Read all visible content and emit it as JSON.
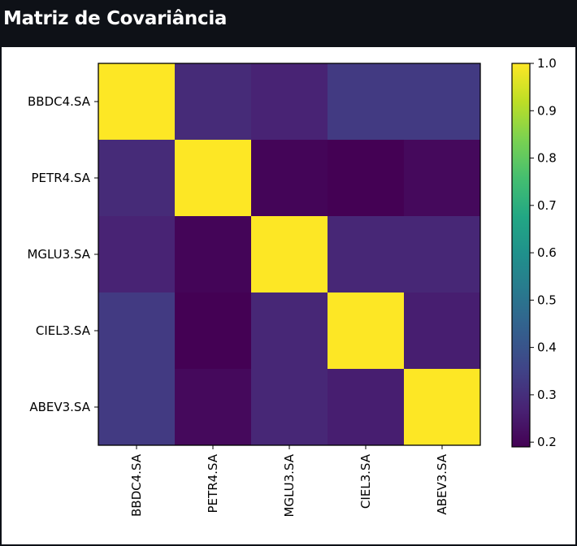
{
  "header": {
    "title": "Matriz de Covariância"
  },
  "chart_data": {
    "type": "heatmap",
    "title": "",
    "xlabel": "",
    "ylabel": "",
    "row_labels": [
      "BBDC4.SA",
      "PETR4.SA",
      "MGLU3.SA",
      "CIEL3.SA",
      "ABEV3.SA"
    ],
    "col_labels": [
      "BBDC4.SA",
      "PETR4.SA",
      "MGLU3.SA",
      "CIEL3.SA",
      "ABEV3.SA"
    ],
    "values": [
      [
        1.0,
        0.29,
        0.27,
        0.33,
        0.33
      ],
      [
        0.29,
        1.0,
        0.2,
        0.19,
        0.21
      ],
      [
        0.27,
        0.2,
        1.0,
        0.28,
        0.28
      ],
      [
        0.33,
        0.19,
        0.28,
        1.0,
        0.26
      ],
      [
        0.33,
        0.21,
        0.28,
        0.26,
        1.0
      ]
    ],
    "colormap": "viridis",
    "colorbar": {
      "range": [
        0.19,
        1.0
      ],
      "ticks": [
        0.2,
        0.3,
        0.4,
        0.5,
        0.6,
        0.7,
        0.8,
        0.9,
        1.0
      ],
      "tick_labels": [
        "0.2",
        "0.3",
        "0.4",
        "0.5",
        "0.6",
        "0.7",
        "0.8",
        "0.9",
        "1.0"
      ]
    }
  }
}
